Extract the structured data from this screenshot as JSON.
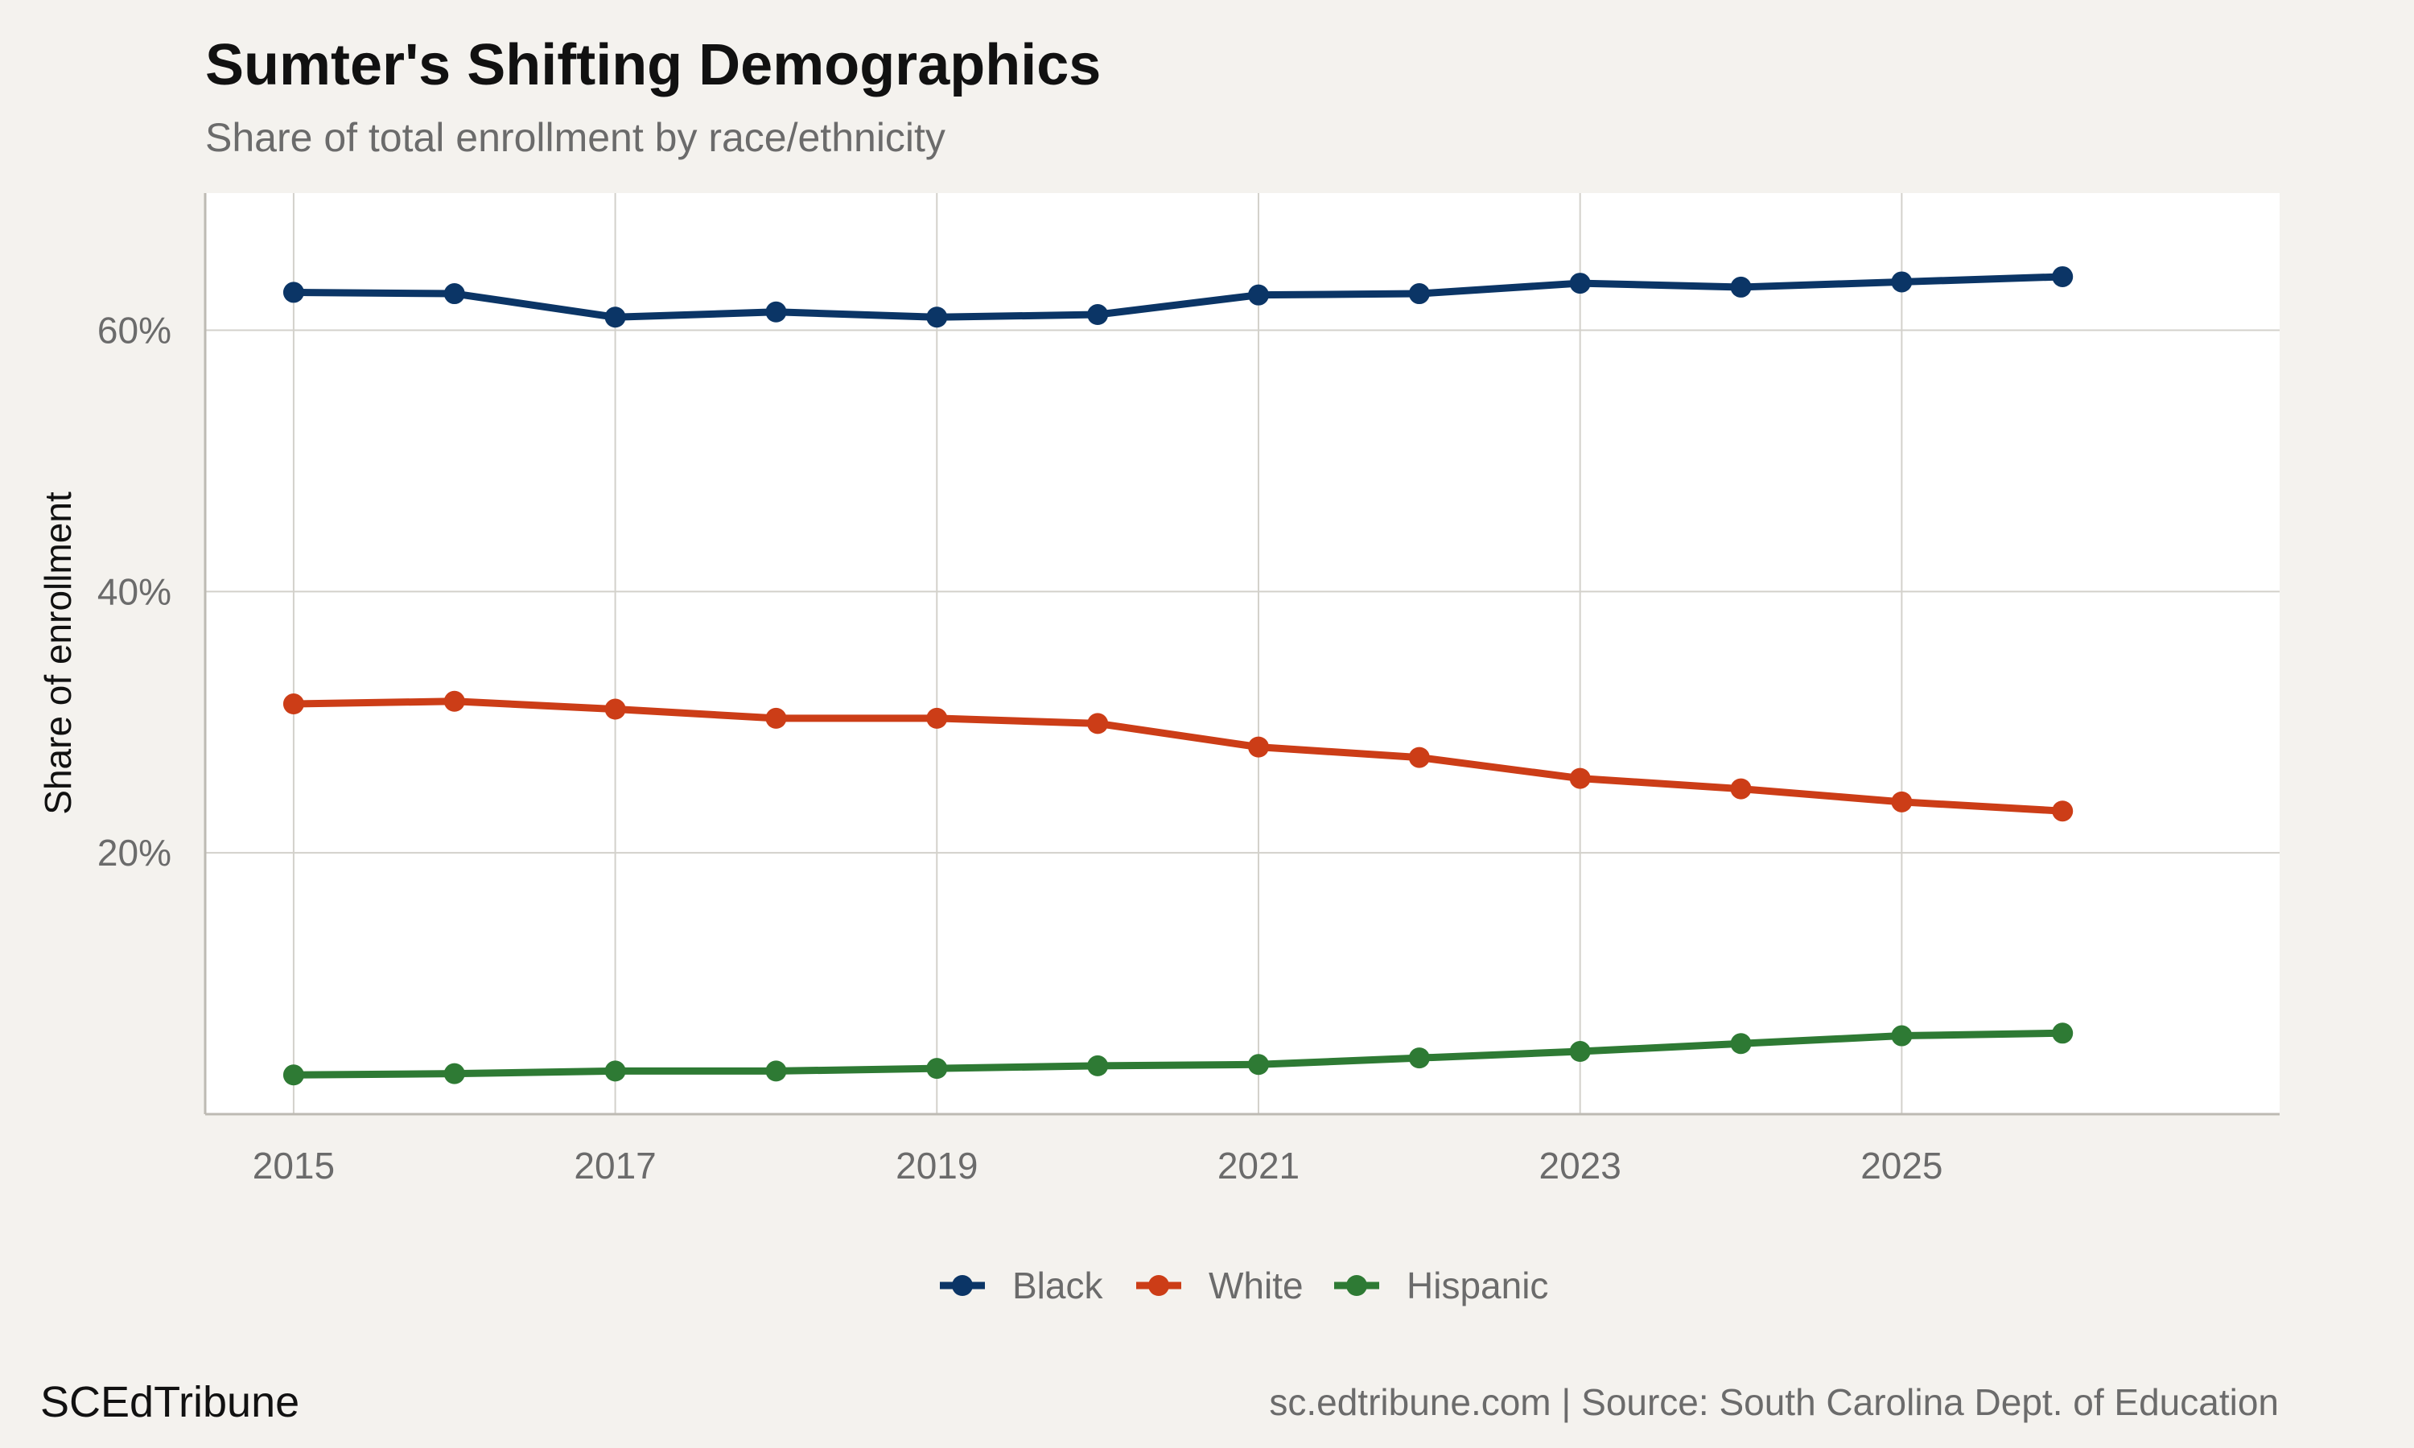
{
  "title": "Sumter's Shifting Demographics",
  "subtitle": "Share of total enrollment by race/ethnicity",
  "brand": "SCEdTribune",
  "source": "sc.edtribune.com | Source: South Carolina Dept. of Education",
  "chart_data": {
    "type": "line",
    "title": "Sumter's Shifting Demographics",
    "subtitle": "Share of total enrollment by race/ethnicity",
    "xlabel": "",
    "ylabel": "Share of enrollment",
    "x": [
      2015,
      2016,
      2017,
      2018,
      2019,
      2020,
      2021,
      2022,
      2023,
      2024,
      2025,
      2026
    ],
    "xlim": [
      2014.45,
      2027.35
    ],
    "ylim": [
      0,
      70.5
    ],
    "x_ticks": [
      2015,
      2017,
      2019,
      2021,
      2023,
      2025
    ],
    "y_ticks": [
      20,
      40,
      60
    ],
    "y_tick_labels": [
      "20%",
      "40%",
      "60%"
    ],
    "grid": true,
    "legend_position": "bottom",
    "series": [
      {
        "name": "Black",
        "color": "#0b3566",
        "values": [
          62.9,
          62.8,
          61.0,
          61.4,
          61.0,
          61.2,
          62.7,
          62.8,
          63.6,
          63.3,
          63.7,
          64.1
        ]
      },
      {
        "name": "White",
        "color": "#cc3d17",
        "values": [
          31.4,
          31.6,
          31.0,
          30.3,
          30.3,
          29.9,
          28.1,
          27.3,
          25.7,
          24.9,
          23.9,
          23.2
        ]
      },
      {
        "name": "Hispanic",
        "color": "#2e7a34",
        "values": [
          3.0,
          3.1,
          3.3,
          3.3,
          3.5,
          3.7,
          3.8,
          4.3,
          4.8,
          5.4,
          6.0,
          6.2
        ]
      }
    ]
  }
}
